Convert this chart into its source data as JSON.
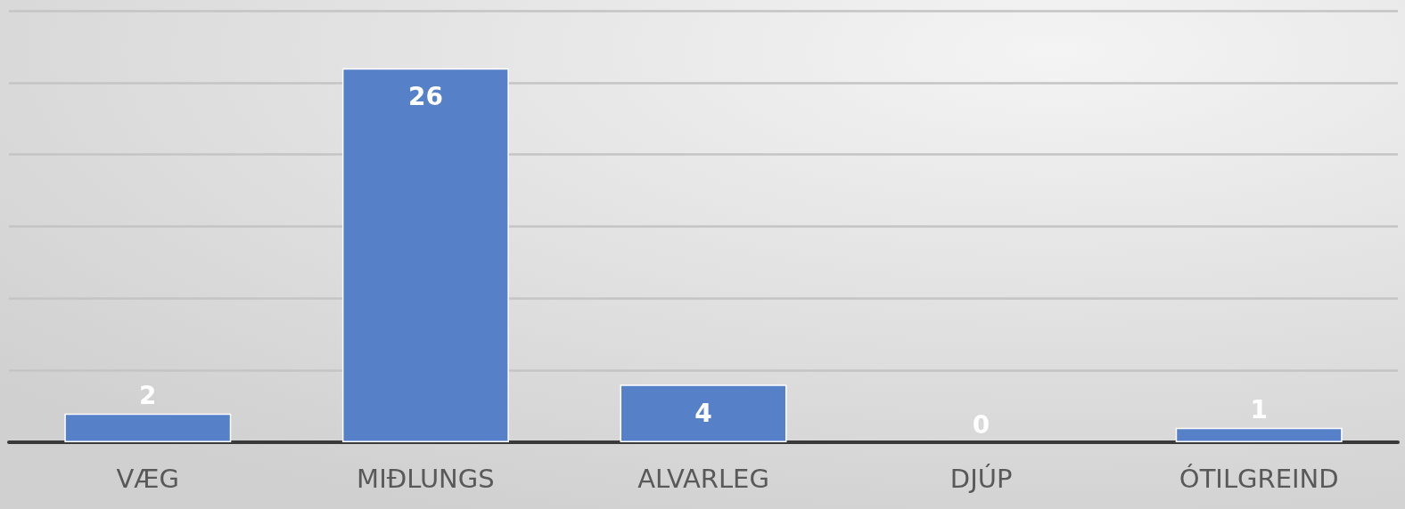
{
  "chart_data": {
    "type": "bar",
    "categories": [
      "VÆG",
      "MIÐLUNGS",
      "ALVARLEG",
      "DJÚP",
      "ÓTILGREIND"
    ],
    "values": [
      2,
      26,
      4,
      0,
      1
    ],
    "color": "#5681c9",
    "ylim": [
      0,
      30
    ],
    "yticks": [
      {
        "value": 0,
        "label": null
      },
      {
        "value": 5,
        "label": null
      },
      {
        "value": 10,
        "label": null
      },
      {
        "value": 15,
        "label": null
      },
      {
        "value": 20,
        "label": null
      },
      {
        "value": 25,
        "label": null
      },
      {
        "value": 30,
        "label": null
      }
    ],
    "tick_labels": "x",
    "grid": "y",
    "data_labels": true
  }
}
